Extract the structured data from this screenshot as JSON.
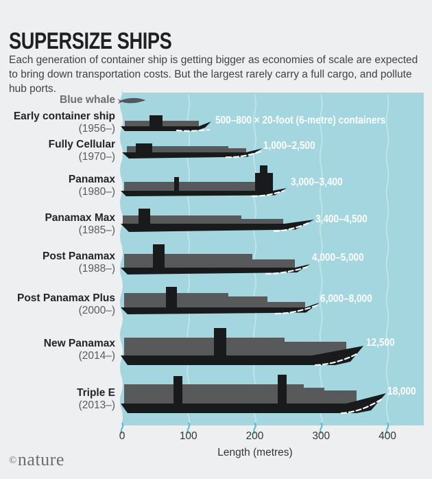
{
  "header": {
    "title": "SUPERSIZE SHIPS",
    "subtitle": "Each generation of container ship is getting bigger as economies of scale are expected to bring down transportation costs. But the largest rarely carry a full cargo, and pollute hub ports."
  },
  "footer": {
    "copyright": "©",
    "brand": "nature"
  },
  "chart_data": {
    "type": "bar",
    "variant": "pictorial-ship-lengths",
    "title": "SUPERSIZE SHIPS",
    "xlabel": "Length (metres)",
    "x_ticks": [
      0,
      100,
      200,
      300,
      400
    ],
    "xlim": [
      0,
      455
    ],
    "grid": "wavy-vertical-lines",
    "capacity_unit": "20-foot (6-metre) containers",
    "rows": [
      {
        "name": "Blue whale",
        "year": "",
        "capacity": "",
        "length_m": 33,
        "profile": "whale"
      },
      {
        "name": "Early container ship",
        "year": "(1956–)",
        "capacity": "500–800 × 20-foot (6-metre) containers",
        "length_m": 137,
        "profile": "early"
      },
      {
        "name": "Fully Cellular",
        "year": "(1970–)",
        "capacity": "1,000–2,500",
        "length_m": 212,
        "profile": "cellular"
      },
      {
        "name": "Panamax",
        "year": "(1980–)",
        "capacity": "3,000–3,400",
        "length_m": 248,
        "profile": "panamax"
      },
      {
        "name": "Panamax Max",
        "year": "(1985–)",
        "capacity": "3,400–4,500",
        "length_m": 290,
        "profile": "panamaxmax"
      },
      {
        "name": "Post Panamax",
        "year": "(1988–)",
        "capacity": "4,000–5,000",
        "length_m": 285,
        "profile": "postpanamax"
      },
      {
        "name": "Post Panamax Plus",
        "year": "(2000–)",
        "capacity": "6,000–8,000",
        "length_m": 299,
        "profile": "ppplus"
      },
      {
        "name": "New Panamax",
        "year": "(2014–)",
        "capacity": "12,500",
        "length_m": 366,
        "profile": "newpanamax"
      },
      {
        "name": "Triple E",
        "year": "(2013–)",
        "capacity": "18,000",
        "length_m": 400,
        "profile": "triplee"
      }
    ],
    "colors": {
      "sea": "#a4d6e0",
      "wave_line": "#c6e6ec",
      "tick_wave": "#54bcd2",
      "hull": "#191a1b",
      "deck": "#58595b",
      "whale": "#53565a",
      "capacity_text": "#ffffff",
      "foam": "#ffffff"
    }
  }
}
